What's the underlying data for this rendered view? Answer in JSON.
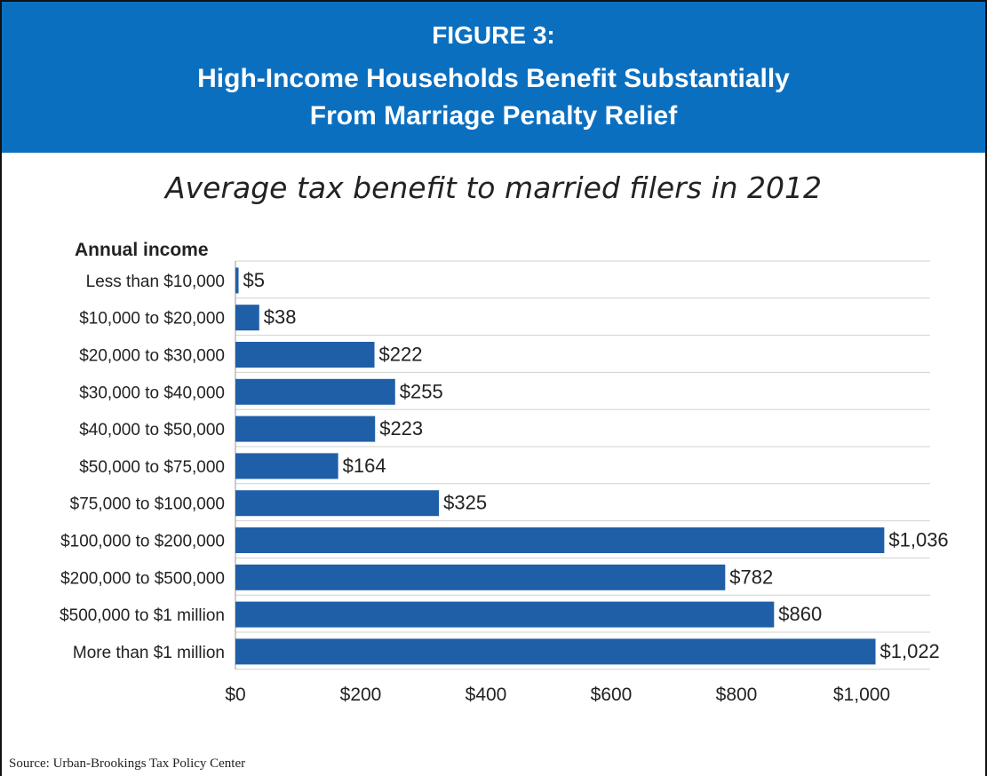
{
  "header": {
    "figure_label": "FIGURE 3:",
    "title_line_1": "High-Income Households Benefit Substantially",
    "title_line_2": "From Marriage Penalty Relief",
    "background_color": "#0b6fc0"
  },
  "chart_data": {
    "type": "bar",
    "orientation": "horizontal",
    "title": "Average tax benefit to married filers in 2012",
    "category_axis_label": "Annual income",
    "categories": [
      "Less than $10,000",
      "$10,000 to $20,000",
      "$20,000 to $30,000",
      "$30,000 to $40,000",
      "$40,000 to $50,000",
      "$50,000 to $75,000",
      "$75,000 to $100,000",
      "$100,000 to $200,000",
      "$200,000 to $500,000",
      "$500,000 to $1 million",
      "More than $1 million"
    ],
    "values": [
      5,
      38,
      222,
      255,
      223,
      164,
      325,
      1036,
      782,
      860,
      1022
    ],
    "value_labels": [
      "$5",
      "$38",
      "$222",
      "$255",
      "$223",
      "$164",
      "$325",
      "$1,036",
      "$782",
      "$860",
      "$1,022"
    ],
    "x_ticks": [
      "$0",
      "$200",
      "$400",
      "$600",
      "$800",
      "$1,000"
    ],
    "x_tick_values": [
      0,
      200,
      400,
      600,
      800,
      1000
    ],
    "xlim": [
      0,
      1100
    ],
    "grid": "horizontal",
    "bar_color": "#1f5fa8"
  },
  "source": "Source: Urban-Brookings Tax Policy Center"
}
